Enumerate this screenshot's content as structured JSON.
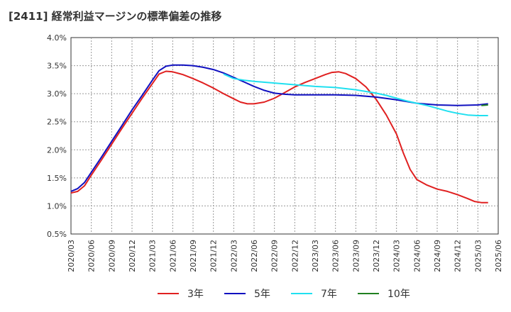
{
  "title": "[2411]  経常利益マージンの標準偏差の推移",
  "chart_data": {
    "type": "line",
    "title": "[2411]  経常利益マージンの標準偏差の推移",
    "xlabel": "",
    "ylabel": "",
    "ylim": [
      0.5,
      4.0
    ],
    "y_ticks": [
      "0.5%",
      "1.0%",
      "1.5%",
      "2.0%",
      "2.5%",
      "3.0%",
      "3.5%",
      "4.0%"
    ],
    "y_tick_values": [
      0.5,
      1.0,
      1.5,
      2.0,
      2.5,
      3.0,
      3.5,
      4.0
    ],
    "x_ticks": [
      "2020/03",
      "2020/06",
      "2020/09",
      "2020/12",
      "2021/03",
      "2021/06",
      "2021/09",
      "2021/12",
      "2022/03",
      "2022/06",
      "2022/09",
      "2022/12",
      "2023/03",
      "2023/06",
      "2023/09",
      "2023/12",
      "2024/03",
      "2024/06",
      "2024/09",
      "2024/12",
      "2025/03",
      "2025/06"
    ],
    "grid": true,
    "legend_position": "bottom",
    "series": [
      {
        "name": "3年",
        "color": "#e02020",
        "points": [
          [
            0,
            1.23
          ],
          [
            0.33,
            1.26
          ],
          [
            0.67,
            1.36
          ],
          [
            1,
            1.55
          ],
          [
            1.5,
            1.82
          ],
          [
            2,
            2.1
          ],
          [
            2.5,
            2.38
          ],
          [
            3,
            2.65
          ],
          [
            3.5,
            2.92
          ],
          [
            4,
            3.18
          ],
          [
            4.33,
            3.35
          ],
          [
            4.67,
            3.4
          ],
          [
            5,
            3.39
          ],
          [
            5.5,
            3.34
          ],
          [
            6,
            3.27
          ],
          [
            6.5,
            3.19
          ],
          [
            7,
            3.1
          ],
          [
            7.5,
            3.0
          ],
          [
            8,
            2.91
          ],
          [
            8.33,
            2.85
          ],
          [
            8.67,
            2.82
          ],
          [
            9,
            2.82
          ],
          [
            9.5,
            2.85
          ],
          [
            10,
            2.92
          ],
          [
            10.5,
            3.02
          ],
          [
            11,
            3.12
          ],
          [
            11.5,
            3.2
          ],
          [
            12,
            3.27
          ],
          [
            12.5,
            3.34
          ],
          [
            12.83,
            3.38
          ],
          [
            13.17,
            3.39
          ],
          [
            13.5,
            3.36
          ],
          [
            14,
            3.27
          ],
          [
            14.5,
            3.12
          ],
          [
            15,
            2.9
          ],
          [
            15.5,
            2.62
          ],
          [
            16,
            2.28
          ],
          [
            16.33,
            1.95
          ],
          [
            16.67,
            1.65
          ],
          [
            17,
            1.47
          ],
          [
            17.5,
            1.37
          ],
          [
            18,
            1.3
          ],
          [
            18.5,
            1.26
          ],
          [
            19,
            1.2
          ],
          [
            19.5,
            1.13
          ],
          [
            19.83,
            1.08
          ],
          [
            20.17,
            1.06
          ],
          [
            20.5,
            1.06
          ]
        ]
      },
      {
        "name": "5年",
        "color": "#1010c0",
        "points": [
          [
            0,
            1.26
          ],
          [
            0.33,
            1.31
          ],
          [
            0.67,
            1.42
          ],
          [
            1,
            1.6
          ],
          [
            1.5,
            1.87
          ],
          [
            2,
            2.15
          ],
          [
            2.5,
            2.43
          ],
          [
            3,
            2.71
          ],
          [
            3.5,
            2.97
          ],
          [
            4,
            3.24
          ],
          [
            4.33,
            3.41
          ],
          [
            4.67,
            3.49
          ],
          [
            5,
            3.51
          ],
          [
            5.5,
            3.51
          ],
          [
            6,
            3.5
          ],
          [
            6.5,
            3.47
          ],
          [
            7,
            3.43
          ],
          [
            7.5,
            3.37
          ],
          [
            8,
            3.29
          ],
          [
            8.5,
            3.21
          ],
          [
            9,
            3.13
          ],
          [
            9.5,
            3.06
          ],
          [
            10,
            3.01
          ],
          [
            10.5,
            2.99
          ],
          [
            11,
            2.98
          ],
          [
            12,
            2.98
          ],
          [
            13,
            2.98
          ],
          [
            14,
            2.97
          ],
          [
            15,
            2.94
          ],
          [
            16,
            2.89
          ],
          [
            17,
            2.83
          ],
          [
            18,
            2.8
          ],
          [
            19,
            2.79
          ],
          [
            20,
            2.8
          ],
          [
            20.5,
            2.82
          ]
        ]
      },
      {
        "name": "7年",
        "color": "#20e0f0",
        "points": [
          [
            7.5,
            3.35
          ],
          [
            8,
            3.27
          ],
          [
            8.5,
            3.24
          ],
          [
            9,
            3.22
          ],
          [
            10,
            3.19
          ],
          [
            11,
            3.16
          ],
          [
            12,
            3.13
          ],
          [
            13,
            3.11
          ],
          [
            14,
            3.07
          ],
          [
            14.5,
            3.04
          ],
          [
            15,
            3.01
          ],
          [
            15.5,
            2.97
          ],
          [
            16,
            2.92
          ],
          [
            16.5,
            2.87
          ],
          [
            17,
            2.83
          ],
          [
            17.5,
            2.79
          ],
          [
            18,
            2.74
          ],
          [
            18.5,
            2.69
          ],
          [
            19,
            2.65
          ],
          [
            19.5,
            2.62
          ],
          [
            20,
            2.61
          ],
          [
            20.5,
            2.61
          ]
        ]
      },
      {
        "name": "10年",
        "color": "#208020",
        "points": [
          [
            20.17,
            2.79
          ],
          [
            20.5,
            2.8
          ]
        ]
      }
    ]
  }
}
